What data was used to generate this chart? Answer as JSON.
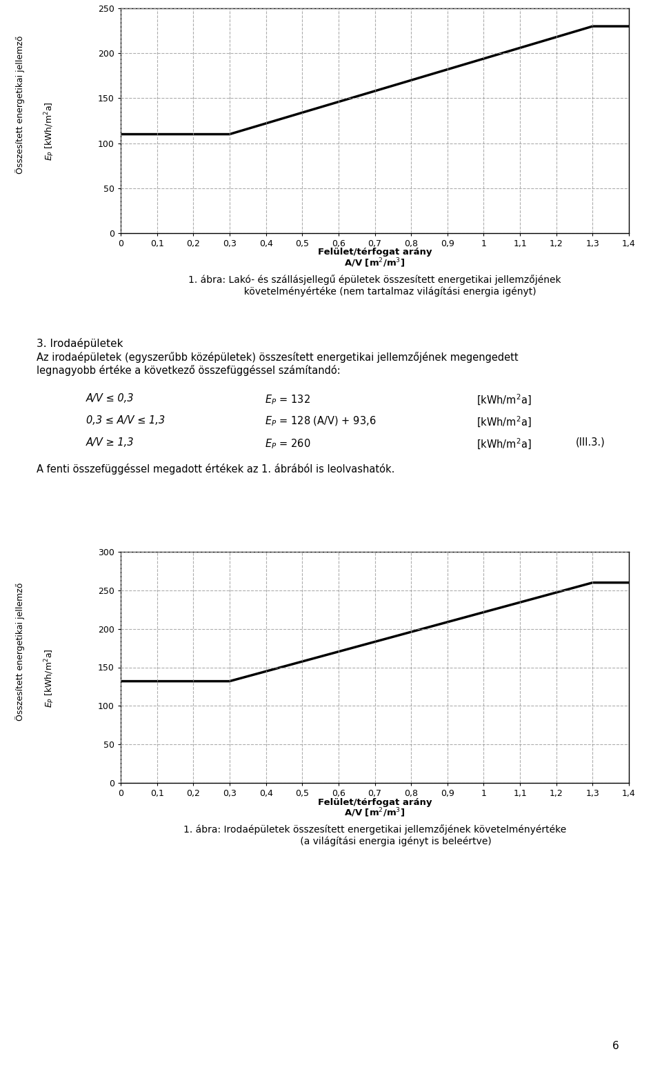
{
  "chart1": {
    "xlim": [
      0,
      1.4
    ],
    "ylim": [
      0,
      250
    ],
    "yticks": [
      0,
      50,
      100,
      150,
      200,
      250
    ],
    "xticks": [
      0,
      0.1,
      0.2,
      0.3,
      0.4,
      0.5,
      0.6,
      0.7,
      0.8,
      0.9,
      1.0,
      1.1,
      1.2,
      1.3,
      1.4
    ],
    "x_data": [
      0,
      0.3,
      1.3,
      1.4
    ],
    "y_data": [
      110,
      110,
      230,
      230
    ],
    "line_color": "#000000",
    "line_width": 2.5,
    "ylabel_top": "Összesített energetikai jellemző",
    "ylabel_bot": "E₂ [kWh/m²a]",
    "xlabel_bold": "Felület/térfogat arány",
    "xlabel_normal": "A/V [m²/m³]",
    "caption": "1. ábra: Lakó- és szállásjellegű épületek összesített energetikai jellemzőjének\n          követelményértéke (nem tartalmaz világítási energia igényt)"
  },
  "chart2": {
    "xlim": [
      0,
      1.4
    ],
    "ylim": [
      0,
      300
    ],
    "yticks": [
      0,
      50,
      100,
      150,
      200,
      250,
      300
    ],
    "xticks": [
      0,
      0.1,
      0.2,
      0.3,
      0.4,
      0.5,
      0.6,
      0.7,
      0.8,
      0.9,
      1.0,
      1.1,
      1.2,
      1.3,
      1.4
    ],
    "x_data": [
      0,
      0.3,
      1.3,
      1.4
    ],
    "y_data": [
      132,
      132,
      260,
      260
    ],
    "line_color": "#000000",
    "line_width": 2.5,
    "ylabel_top": "Összesített energetikai jellemző",
    "ylabel_bot": "E₂ [kWh/m²a]",
    "xlabel_bold": "Felület/térfogat arány",
    "xlabel_normal": "A/V [m²/m³]",
    "caption_line1": "1. ábra: Irodaépületek összesített energetikai jellemzőjének követelményértéke",
    "caption_line2": "(a világítási energia igényt is beleértve)"
  },
  "grid_color": "#999999",
  "grid_style": "--",
  "grid_alpha": 0.8,
  "bg_color": "#ffffff",
  "page_number": "6"
}
